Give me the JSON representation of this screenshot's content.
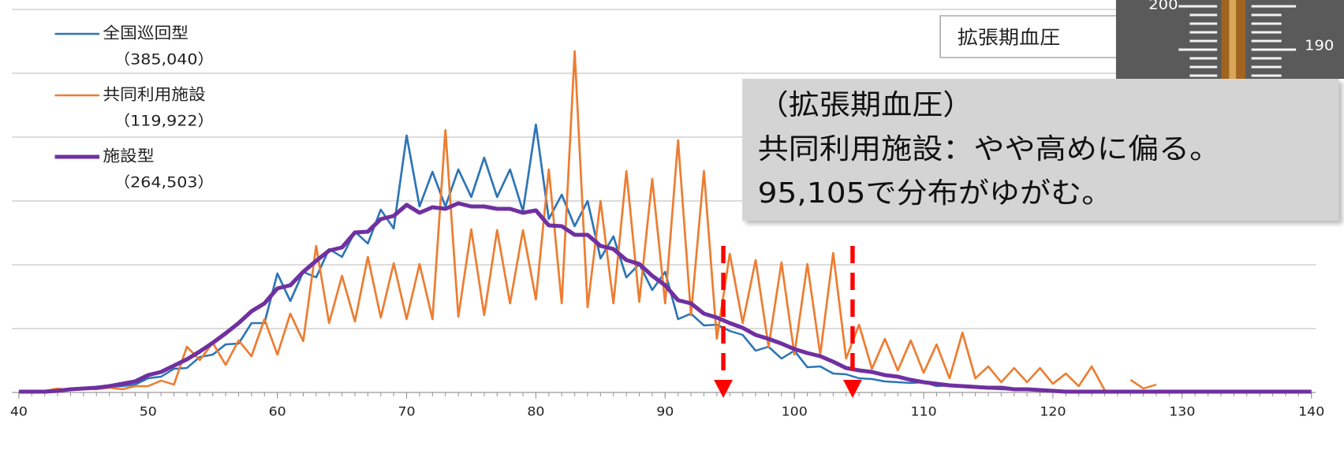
{
  "chart_data": {
    "type": "line",
    "x": [
      40,
      41,
      42,
      43,
      44,
      45,
      46,
      47,
      48,
      49,
      50,
      51,
      52,
      53,
      54,
      55,
      56,
      57,
      58,
      59,
      60,
      61,
      62,
      63,
      64,
      65,
      66,
      67,
      68,
      69,
      70,
      71,
      72,
      73,
      74,
      75,
      76,
      77,
      78,
      79,
      80,
      81,
      82,
      83,
      84,
      85,
      86,
      87,
      88,
      89,
      90,
      91,
      92,
      93,
      94,
      95,
      96,
      97,
      98,
      99,
      100,
      101,
      102,
      103,
      104,
      105,
      106,
      107,
      108,
      109,
      110,
      111,
      112,
      113,
      114,
      115,
      116,
      117,
      118,
      119,
      120,
      121,
      122,
      123,
      124,
      125,
      126,
      127,
      128,
      129,
      130,
      131,
      132,
      133,
      134,
      135,
      136,
      137,
      138,
      139,
      140
    ],
    "series": [
      {
        "name": "全国巡回型",
        "note": "（385,040）",
        "color": "#2e75b6",
        "width": 2.5,
        "values": [
          1,
          1,
          1,
          2,
          3,
          4,
          6,
          7,
          8,
          10,
          18,
          20,
          30,
          31,
          45,
          48,
          61,
          62,
          88,
          88,
          151,
          116,
          153,
          146,
          182,
          172,
          204,
          189,
          232,
          208,
          326,
          236,
          280,
          236,
          283,
          248,
          298,
          248,
          283,
          230,
          340,
          220,
          251,
          211,
          243,
          170,
          198,
          146,
          163,
          130,
          153,
          93,
          100,
          85,
          86,
          78,
          73,
          53,
          58,
          43,
          53,
          32,
          33,
          24,
          23,
          18,
          17,
          14,
          13,
          12,
          13,
          8,
          9,
          7,
          6,
          5,
          4,
          4,
          3,
          3,
          2,
          1,
          1,
          1,
          1,
          1,
          1,
          1,
          1,
          1,
          1,
          1,
          1,
          1,
          1,
          1,
          1,
          1,
          1,
          1,
          1
        ]
      },
      {
        "name": "共同利用施設",
        "note": "（119,922）",
        "color": "#ed7d31",
        "width": 2.5,
        "values": [
          1,
          1,
          2,
          5,
          3,
          5,
          4,
          6,
          4,
          8,
          8,
          15,
          10,
          58,
          41,
          63,
          35,
          66,
          46,
          93,
          48,
          100,
          65,
          186,
          88,
          148,
          90,
          172,
          95,
          164,
          93,
          163,
          93,
          333,
          96,
          207,
          98,
          206,
          113,
          206,
          118,
          283,
          113,
          433,
          108,
          243,
          113,
          281,
          115,
          271,
          113,
          320,
          98,
          281,
          68,
          176,
          88,
          168,
          58,
          165,
          48,
          163,
          48,
          177,
          43,
          86,
          30,
          68,
          28,
          66,
          25,
          61,
          18,
          76,
          18,
          33,
          13,
          31,
          13,
          31,
          11,
          24,
          8,
          33,
          3,
          null,
          16,
          5,
          10,
          null,
          null,
          null,
          null,
          null,
          null,
          null,
          null,
          null,
          null,
          null,
          null
        ]
      },
      {
        "name": "施設型",
        "note": "（264,503）",
        "color": "#7030a0",
        "width": 5,
        "values": [
          1,
          1,
          1,
          2,
          4,
          5,
          6,
          8,
          11,
          14,
          22,
          26,
          34,
          42,
          52,
          63,
          75,
          88,
          103,
          113,
          132,
          136,
          153,
          167,
          180,
          184,
          203,
          204,
          220,
          224,
          238,
          228,
          235,
          233,
          240,
          236,
          236,
          233,
          233,
          228,
          231,
          212,
          211,
          200,
          200,
          186,
          182,
          168,
          163,
          148,
          136,
          117,
          113,
          100,
          95,
          88,
          82,
          73,
          68,
          62,
          55,
          50,
          46,
          39,
          31,
          28,
          26,
          22,
          20,
          16,
          13,
          11,
          9,
          8,
          7,
          6,
          6,
          4,
          4,
          3,
          2,
          1,
          1,
          1,
          1,
          1,
          1,
          1,
          1,
          1,
          1,
          1,
          1,
          1,
          1,
          1,
          1,
          1,
          1,
          1,
          1
        ]
      }
    ],
    "xlim": [
      40,
      140
    ],
    "xticks": [
      40,
      50,
      60,
      70,
      80,
      90,
      100,
      110,
      120,
      130,
      140
    ],
    "ylim": [
      0,
      486
    ],
    "yticks": [
      0,
      81,
      162,
      243,
      324,
      405,
      486
    ],
    "grid": true,
    "markers": {
      "x": [
        94.5,
        104.5
      ],
      "color": "#ff0000"
    },
    "label_box": "拡張期血圧",
    "image_labels": [
      "200",
      "190"
    ],
    "callout": [
      "（拡張期血圧）",
      "共同利用施設：やや高めに偏る。",
      "95,105で分布がゆがむ。"
    ]
  }
}
